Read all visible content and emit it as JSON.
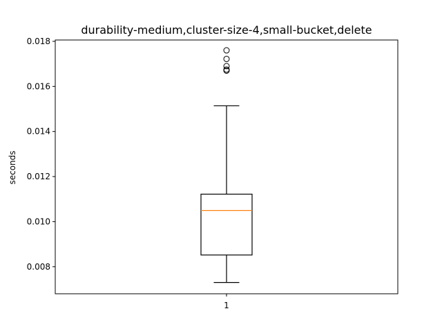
{
  "chart_data": {
    "type": "box",
    "title": "durability-medium,cluster-size-4,small-bucket,delete",
    "xlabel": "",
    "ylabel": "seconds",
    "ylim": [
      0.0068,
      0.01806
    ],
    "yticks": [
      "0.008",
      "0.010",
      "0.012",
      "0.014",
      "0.016",
      "0.018"
    ],
    "grid": false,
    "categories": [
      "1"
    ],
    "boxes": [
      {
        "label": "1",
        "whisker_low": 0.0073,
        "q1": 0.00852,
        "median": 0.01049,
        "q3": 0.01122,
        "whisker_high": 0.01514,
        "outliers": [
          0.0176,
          0.01722,
          0.0169,
          0.01675,
          0.0167
        ]
      }
    ],
    "colors": {
      "box": "#000000",
      "median": "#ff7f0e",
      "outlier": "#000000"
    }
  }
}
